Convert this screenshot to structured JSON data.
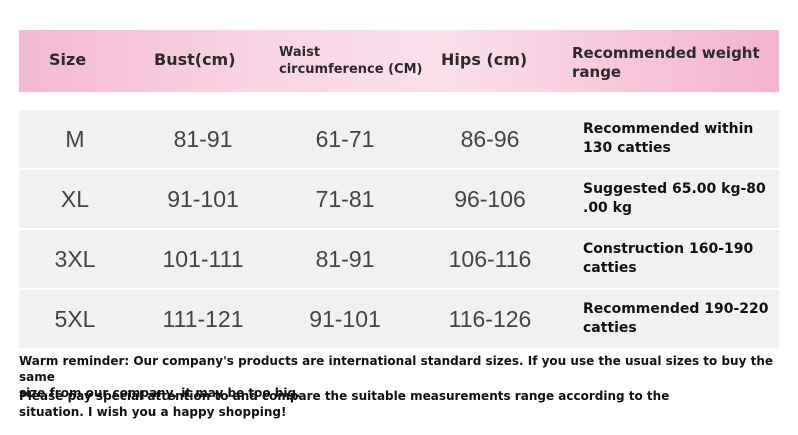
{
  "header": {
    "size": "Size",
    "bust": "Bust(cm)",
    "waist_line1": "Waist",
    "waist_line2": "circumference (CM)",
    "hips": "Hips (cm)",
    "weight_line1": "Recommended weight",
    "weight_line2": "range"
  },
  "rows": [
    {
      "size": "M",
      "bust": "81-91",
      "waist": "61-71",
      "hips": "86-96",
      "weight_line1": "Recommended within",
      "weight_line2": "130 catties"
    },
    {
      "size": "XL",
      "bust": "91-101",
      "waist": "71-81",
      "hips": "96-106",
      "weight_line1": "Suggested 65.00 kg-80",
      "weight_line2": ".00 kg"
    },
    {
      "size": "3XL",
      "bust": "101-111",
      "waist": "81-91",
      "hips": "106-116",
      "weight_line1": "Construction 160-190",
      "weight_line2": "catties"
    },
    {
      "size": "5XL",
      "bust": "111-121",
      "waist": "91-101",
      "hips": "116-126",
      "weight_line1": "Recommended 190-220",
      "weight_line2": "catties"
    }
  ],
  "footer": {
    "line1": "Warm reminder: Our company's products are international standard sizes. If you use the usual sizes to buy the same",
    "line2": "size from our company, it may be too big.",
    "line3": "Please pay special attention to and compare the suitable measurements range according to the",
    "line4": "situation. I wish you a happy shopping!"
  }
}
